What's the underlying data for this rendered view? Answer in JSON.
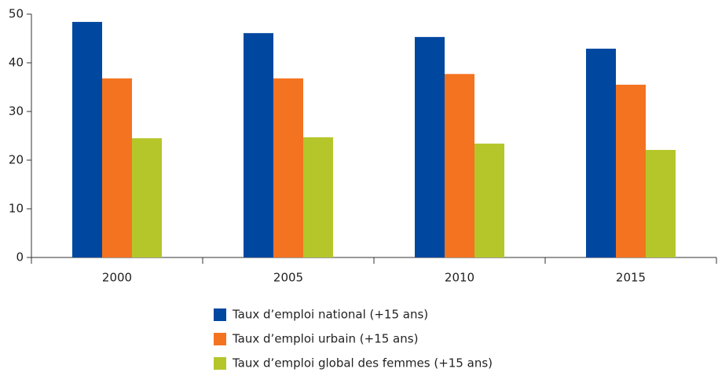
{
  "chart_data": {
    "type": "bar",
    "categories": [
      "2000",
      "2005",
      "2010",
      "2015"
    ],
    "series": [
      {
        "name": "Taux d’emploi national (+15 ans)",
        "color": "#0047a0",
        "values": [
          48.4,
          46.1,
          45.3,
          42.9
        ]
      },
      {
        "name": "Taux d’emploi urbain (+15 ans)",
        "color": "#f47321",
        "values": [
          36.8,
          36.8,
          37.7,
          35.5
        ]
      },
      {
        "name": "Taux d’emploi global des femmes (+15 ans)",
        "color": "#b5c62a",
        "values": [
          24.5,
          24.7,
          23.4,
          22.1
        ]
      }
    ],
    "ylim": [
      0,
      50
    ],
    "yticks": [
      0,
      10,
      20,
      30,
      40,
      50
    ],
    "grid": false,
    "legend": "bottom"
  }
}
